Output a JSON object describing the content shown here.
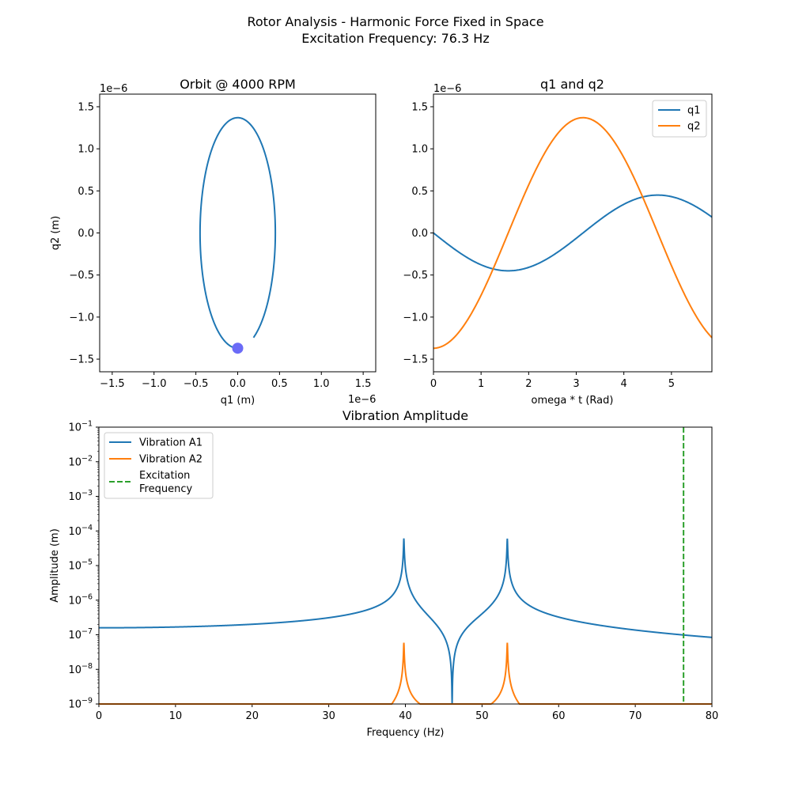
{
  "figure": {
    "title_line1": "Rotor Analysis - Harmonic Force Fixed in Space",
    "title_line2": "Excitation Frequency: 76.3 Hz"
  },
  "colors": {
    "c1": "#1f77b4",
    "c2": "#ff7f0e",
    "c3": "#2ca02c",
    "marker": "#6b6bf7"
  },
  "chart_data": [
    {
      "id": "orbit",
      "type": "line",
      "title": "Orbit @ 4000 RPM",
      "xlabel": "q1 (m)",
      "ylabel": "q2 (m)",
      "x_offset_text": "1e−6",
      "y_offset_text": "1e−6",
      "xlim": [
        -1.65,
        1.65
      ],
      "ylim": [
        -1.65,
        1.65
      ],
      "xticks": [
        -1.5,
        -1.0,
        -0.5,
        0.0,
        0.5,
        1.0,
        1.5
      ],
      "yticks": [
        -1.5,
        -1.0,
        -0.5,
        0.0,
        0.5,
        1.0,
        1.5
      ],
      "scale": "1e-6",
      "orbit": {
        "q1_amplitude": 0.45,
        "q2_amplitude": 1.37,
        "theta_end_rad": 5.85
      },
      "marker_point": {
        "q1": 0.0,
        "q2": -1.37
      },
      "grid": false
    },
    {
      "id": "time",
      "type": "line",
      "title": "q1 and q2",
      "xlabel": "omega * t (Rad)",
      "ylabel": "",
      "y_offset_text": "1e−6",
      "xlim": [
        0,
        5.85
      ],
      "ylim": [
        -1.65,
        1.65
      ],
      "xticks": [
        0,
        1,
        2,
        3,
        4,
        5
      ],
      "yticks": [
        -1.5,
        -1.0,
        -0.5,
        0.0,
        0.5,
        1.0,
        1.5
      ],
      "scale": "1e-6",
      "series": [
        {
          "name": "q1",
          "func": "-0.45*sin(t)"
        },
        {
          "name": "q2",
          "func": "-1.37*cos(t)"
        }
      ],
      "legend": "top-right",
      "grid": false
    },
    {
      "id": "freq",
      "type": "line",
      "title": "Vibration Amplitude",
      "xlabel": "Frequency (Hz)",
      "ylabel": "Amplitude (m)",
      "xlim": [
        0,
        80
      ],
      "ylim_exp": [
        -9,
        -1
      ],
      "log_y": true,
      "xticks": [
        0,
        10,
        20,
        30,
        40,
        50,
        60,
        70,
        80
      ],
      "yticks_exp": [
        -9,
        -8,
        -7,
        -6,
        -5,
        -4,
        -3,
        -2,
        -1
      ],
      "resonances_hz": [
        39.8,
        53.3
      ],
      "antiresonance_hz": 46.1,
      "excitation_hz": 76.3,
      "series": [
        {
          "name": "Vibration A1"
        },
        {
          "name": "Vibration A2"
        },
        {
          "name": "Excitation\nFrequency",
          "line1": "Excitation",
          "line2": "Frequency",
          "style": "dashed"
        }
      ],
      "legend": "top-left",
      "grid": false
    }
  ]
}
